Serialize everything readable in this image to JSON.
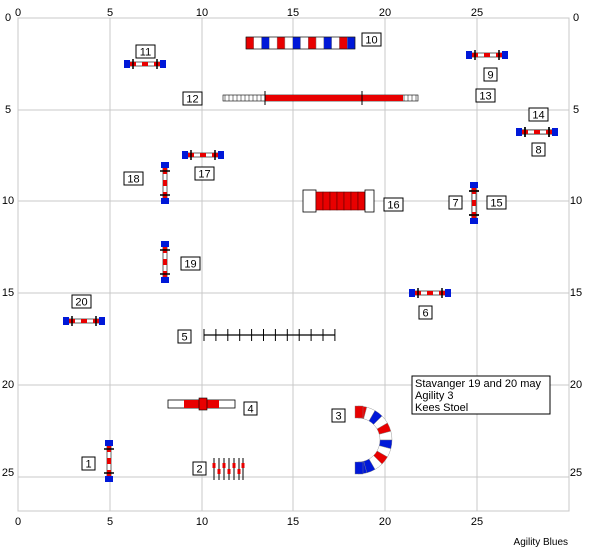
{
  "course": {
    "axis_ticks": [
      "0",
      "5",
      "10",
      "15",
      "20",
      "25"
    ],
    "info_lines": [
      "Stavanger 19 and 20 may",
      "Agility 3",
      "Kees Stoel"
    ],
    "footer": "Agility Blues",
    "colors": {
      "grid": "#c8c8c8",
      "blue": "#0018d8",
      "red": "#e80000",
      "black": "#000000"
    },
    "obstacles": [
      {
        "num": "1",
        "kind": "jump"
      },
      {
        "num": "2",
        "kind": "weave-poles"
      },
      {
        "num": "3",
        "kind": "tunnel"
      },
      {
        "num": "4",
        "kind": "tire"
      },
      {
        "num": "5",
        "kind": "weave-poles"
      },
      {
        "num": "6",
        "kind": "jump"
      },
      {
        "num": "7",
        "kind": "jump"
      },
      {
        "num": "8",
        "kind": "jump"
      },
      {
        "num": "9",
        "kind": "jump"
      },
      {
        "num": "10",
        "kind": "tunnel"
      },
      {
        "num": "11",
        "kind": "jump"
      },
      {
        "num": "12",
        "kind": "dog-walk"
      },
      {
        "num": "13",
        "kind": "dog-walk"
      },
      {
        "num": "14",
        "kind": "jump"
      },
      {
        "num": "15",
        "kind": "jump"
      },
      {
        "num": "16",
        "kind": "collapsed-tunnel"
      },
      {
        "num": "17",
        "kind": "jump"
      },
      {
        "num": "18",
        "kind": "jump"
      },
      {
        "num": "19",
        "kind": "jump"
      },
      {
        "num": "20",
        "kind": "jump"
      }
    ]
  }
}
